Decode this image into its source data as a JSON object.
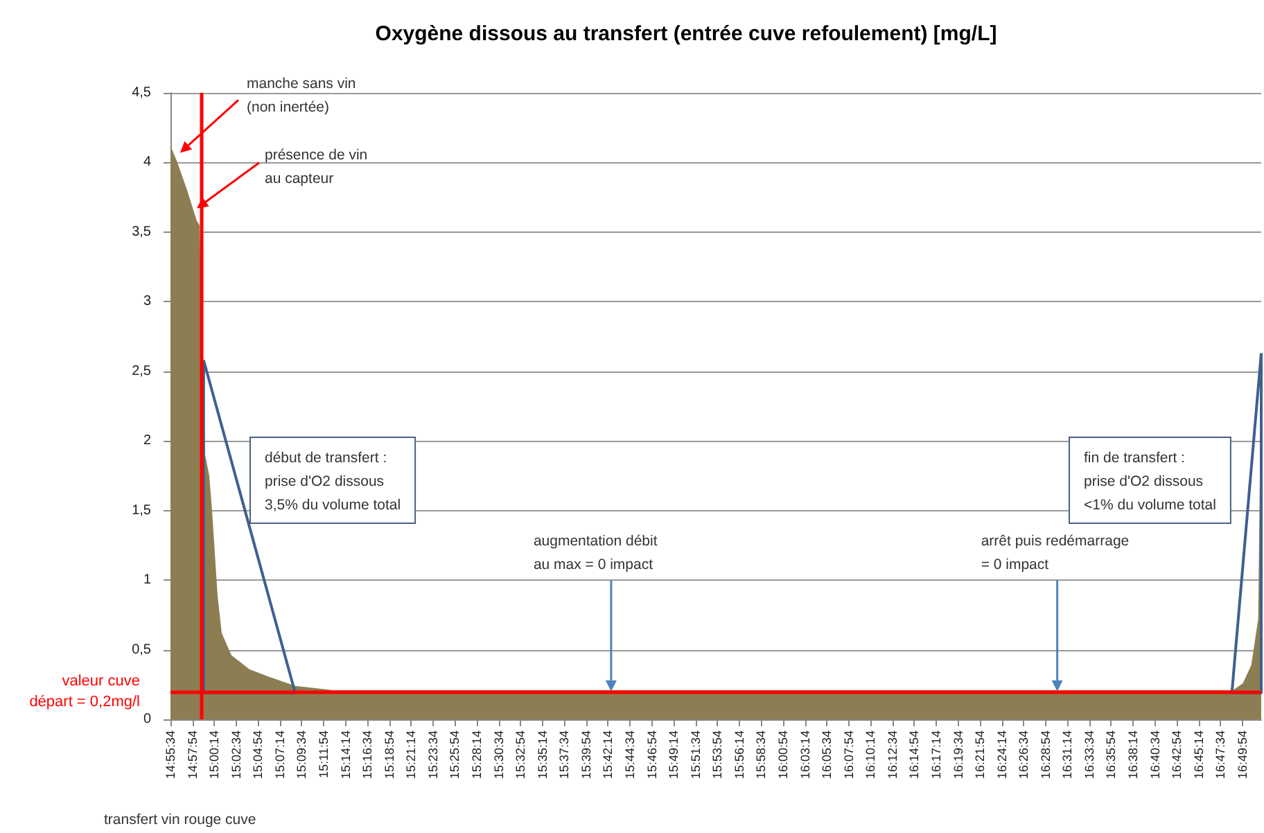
{
  "chart_data": {
    "type": "area",
    "title": "Oxygène dissous au transfert (entrée cuve refoulement) [mg/L]",
    "series": [
      {
        "color": "#8c7e52",
        "x": [
          14.9261,
          14.9384,
          14.9557,
          14.9729,
          14.9778,
          14.9877,
          14.9951,
          15.0,
          15.0098,
          15.0172,
          15.0345,
          15.0665,
          15.0985,
          15.1478,
          15.2143,
          15.4,
          15.7,
          16.0,
          16.3,
          16.6,
          16.8153,
          16.8325,
          16.8473,
          16.8596,
          16.865
        ],
        "values": [
          4.12,
          4.0,
          3.8,
          3.58,
          3.55,
          1.9,
          1.75,
          1.5,
          0.89,
          0.62,
          0.46,
          0.36,
          0.31,
          0.24,
          0.21,
          0.21,
          0.21,
          0.21,
          0.21,
          0.21,
          0.21,
          0.26,
          0.39,
          0.72,
          2.6
        ]
      },
      {
        "type": "line",
        "color": "#3f5f8f",
        "x": [
          14.985,
          14.985,
          15.1478
        ],
        "values": [
          2.58,
          0.19,
          0.19
        ]
      },
      {
        "type": "line",
        "color": "#3f5f8f",
        "x": [
          14.985,
          15.1478
        ],
        "values": [
          2.58,
          0.19
        ]
      },
      {
        "type": "line",
        "color": "#3f5f8f",
        "x": [
          16.8128,
          16.865,
          16.865
        ],
        "values": [
          0.19,
          0.19,
          2.63
        ]
      },
      {
        "type": "line",
        "color": "#3f5f8f",
        "x": [
          16.8128,
          16.865
        ],
        "values": [
          0.19,
          2.63
        ]
      }
    ],
    "xlim": [
      14.9261,
      16.865
    ],
    "xticks": [
      {
        "value": 14.9261,
        "label": "14:55:34"
      },
      {
        "value": 14.965,
        "label": "14:57:54"
      },
      {
        "value": 15.0039,
        "label": "15:00:14"
      },
      {
        "value": 15.0428,
        "label": "15:02:34"
      },
      {
        "value": 15.0817,
        "label": "15:04:54"
      },
      {
        "value": 15.1206,
        "label": "15:07:14"
      },
      {
        "value": 15.1594,
        "label": "15:09:34"
      },
      {
        "value": 15.1983,
        "label": "15:11:54"
      },
      {
        "value": 15.2372,
        "label": "15:14:14"
      },
      {
        "value": 15.2761,
        "label": "15:16:34"
      },
      {
        "value": 15.315,
        "label": "15:18:54"
      },
      {
        "value": 15.3539,
        "label": "15:21:14"
      },
      {
        "value": 15.3928,
        "label": "15:23:34"
      },
      {
        "value": 15.4317,
        "label": "15:25:54"
      },
      {
        "value": 15.4706,
        "label": "15:28:14"
      },
      {
        "value": 15.5094,
        "label": "15:30:34"
      },
      {
        "value": 15.5483,
        "label": "15:32:54"
      },
      {
        "value": 15.5872,
        "label": "15:35:14"
      },
      {
        "value": 15.6261,
        "label": "15:37:34"
      },
      {
        "value": 15.665,
        "label": "15:39:54"
      },
      {
        "value": 15.7039,
        "label": "15:42:14"
      },
      {
        "value": 15.7428,
        "label": "15:44:34"
      },
      {
        "value": 15.7817,
        "label": "15:46:54"
      },
      {
        "value": 15.8206,
        "label": "15:49:14"
      },
      {
        "value": 15.8594,
        "label": "15:51:34"
      },
      {
        "value": 15.8983,
        "label": "15:53:54"
      },
      {
        "value": 15.9372,
        "label": "15:56:14"
      },
      {
        "value": 15.9761,
        "label": "15:58:34"
      },
      {
        "value": 16.015,
        "label": "16:00:54"
      },
      {
        "value": 16.0539,
        "label": "16:03:14"
      },
      {
        "value": 16.0928,
        "label": "16:05:34"
      },
      {
        "value": 16.1317,
        "label": "16:07:54"
      },
      {
        "value": 16.1706,
        "label": "16:10:14"
      },
      {
        "value": 16.2094,
        "label": "16:12:34"
      },
      {
        "value": 16.2483,
        "label": "16:14:54"
      },
      {
        "value": 16.2872,
        "label": "16:17:14"
      },
      {
        "value": 16.3261,
        "label": "16:19:34"
      },
      {
        "value": 16.365,
        "label": "16:21:54"
      },
      {
        "value": 16.4039,
        "label": "16:24:14"
      },
      {
        "value": 16.4428,
        "label": "16:26:34"
      },
      {
        "value": 16.4817,
        "label": "16:28:54"
      },
      {
        "value": 16.5206,
        "label": "16:31:14"
      },
      {
        "value": 16.5594,
        "label": "16:33:34"
      },
      {
        "value": 16.5983,
        "label": "16:35:54"
      },
      {
        "value": 16.6372,
        "label": "16:38:14"
      },
      {
        "value": 16.6761,
        "label": "16:40:34"
      },
      {
        "value": 16.715,
        "label": "16:42:54"
      },
      {
        "value": 16.7539,
        "label": "16:45:14"
      },
      {
        "value": 16.7928,
        "label": "16:47:34"
      },
      {
        "value": 16.8317,
        "label": "16:49:54"
      }
    ],
    "ylim": [
      0,
      4.5
    ],
    "yticks": [
      0,
      {
        "value": 0.5,
        "label": "0,5"
      },
      1,
      {
        "value": 1.5,
        "label": "1,5"
      },
      2,
      {
        "value": 2.5,
        "label": "2,5"
      },
      3,
      {
        "value": 3.5,
        "label": "3,5"
      },
      4,
      {
        "value": 4.5,
        "label": "4,5"
      }
    ],
    "grid": "y",
    "ref_lines": [
      {
        "axis": "y",
        "value": 0.2,
        "label": "valeur cuve\ndépart = 0,2mg/l",
        "color": "#ff0000"
      },
      {
        "axis": "x",
        "value": 14.9803,
        "color": "#ff0000"
      }
    ],
    "annotations": [
      {
        "text": "manche sans vin\n(non inertée)",
        "x": 14.9433,
        "y": 4.07
      },
      {
        "text": "présence de vin\nau capteur",
        "x": 14.9729,
        "y": 3.67
      },
      "début de transfert :\nprise d'O2 dissous\n3,5% du volume total",
      {
        "text": "augmentation débit\nau max = 0 impact",
        "x": 15.7094,
        "y": 0.2
      },
      {
        "text": "arrêt puis redémarrage\n= 0 impact",
        "x": 16.5024,
        "y": 0.2
      },
      "fin de transfert :\nprise d'O2 dissous\n<1% du volume total",
      "transfert vin rouge cuve"
    ]
  }
}
